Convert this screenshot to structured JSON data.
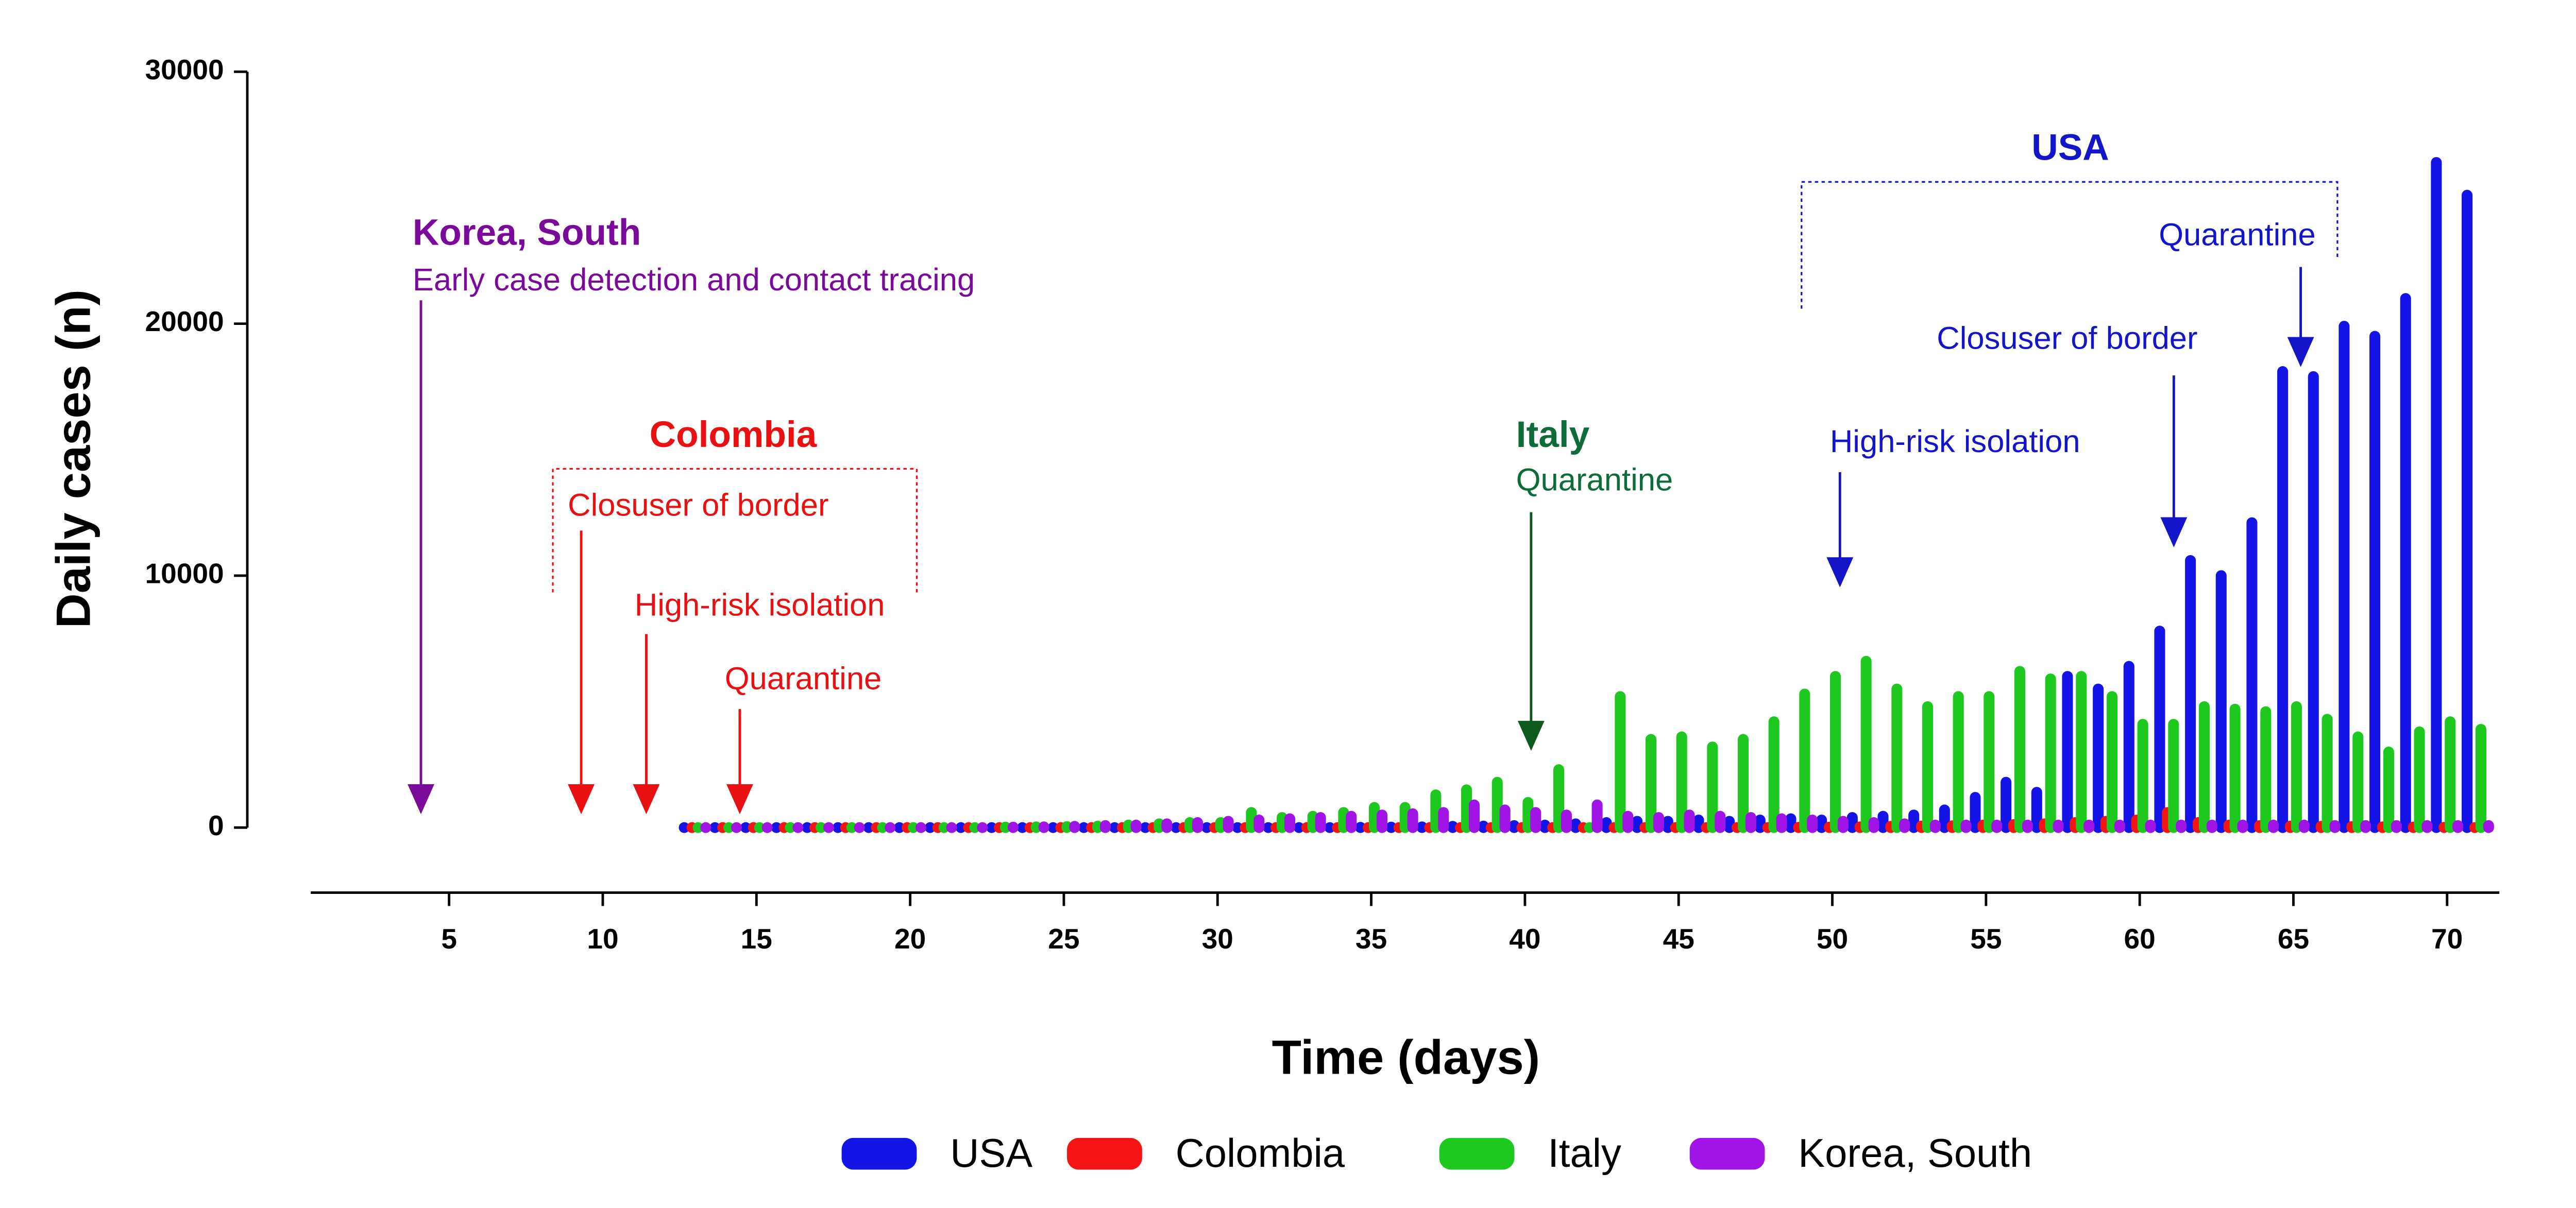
{
  "chart_data": {
    "type": "bar",
    "y_label": "Daily cases (n)",
    "x_label": "Time (days)",
    "x": [
      13,
      14,
      15,
      16,
      17,
      18,
      19,
      20,
      21,
      22,
      23,
      24,
      25,
      26,
      27,
      28,
      29,
      30,
      31,
      32,
      33,
      34,
      35,
      36,
      37,
      38,
      39,
      40,
      41,
      42,
      43,
      44,
      45,
      46,
      47,
      48,
      49,
      50,
      51,
      52,
      53,
      54,
      55,
      56,
      57,
      58,
      59,
      60,
      61,
      62,
      63,
      64,
      65,
      66,
      67,
      68,
      69,
      70,
      71
    ],
    "xlim": [
      0.5,
      71.7
    ],
    "xticks": [
      5,
      10,
      15,
      20,
      25,
      30,
      35,
      40,
      45,
      50,
      55,
      60,
      65,
      70
    ],
    "ylim": [
      0,
      30000
    ],
    "yticks": [
      0,
      10000,
      20000,
      30000
    ],
    "series": [
      {
        "name": "USA",
        "color": "#1414e6",
        "values": [
          0,
          0,
          0,
          0,
          0,
          0,
          0,
          0,
          0,
          0,
          0,
          0,
          0,
          0,
          0,
          0,
          0,
          0,
          0,
          0,
          0,
          0,
          10,
          20,
          30,
          50,
          60,
          80,
          100,
          150,
          200,
          250,
          250,
          300,
          250,
          300,
          350,
          300,
          400,
          450,
          500,
          700,
          1200,
          1800,
          1400,
          6000,
          5500,
          6400,
          7800,
          10600,
          10000,
          12100,
          18100,
          17900,
          19900,
          19500,
          21000,
          26400,
          25100
        ]
      },
      {
        "name": "Colombia",
        "color": "#f51414",
        "values": [
          0,
          0,
          0,
          0,
          0,
          0,
          0,
          0,
          0,
          0,
          0,
          0,
          0,
          0,
          0,
          0,
          0,
          0,
          0,
          0,
          0,
          0,
          0,
          0,
          0,
          0,
          0,
          0,
          0,
          0,
          0,
          0,
          0,
          0,
          0,
          0,
          10,
          20,
          30,
          50,
          60,
          70,
          100,
          120,
          150,
          200,
          250,
          300,
          600,
          200,
          100,
          80,
          60,
          50,
          40,
          30,
          20,
          10,
          0
        ]
      },
      {
        "name": "Italy",
        "color": "#1ec81e",
        "values": [
          0,
          0,
          0,
          0,
          0,
          0,
          0,
          0,
          0,
          0,
          20,
          30,
          40,
          60,
          100,
          150,
          200,
          200,
          600,
          400,
          450,
          600,
          800,
          800,
          1300,
          1500,
          1800,
          1000,
          2300,
          0,
          5200,
          3500,
          3600,
          3200,
          3500,
          4200,
          5300,
          6000,
          6600,
          5500,
          4800,
          5200,
          5200,
          6200,
          5900,
          6000,
          5200,
          4100,
          4100,
          4800,
          4700,
          4600,
          4800,
          4300,
          3600,
          3000,
          3800,
          4200,
          3900
        ]
      },
      {
        "name": "Korea, South",
        "color": "#a014e6",
        "values": [
          0,
          0,
          0,
          0,
          0,
          0,
          0,
          0,
          0,
          0,
          20,
          30,
          50,
          80,
          100,
          150,
          200,
          250,
          300,
          350,
          400,
          450,
          500,
          550,
          600,
          900,
          700,
          600,
          500,
          900,
          450,
          400,
          500,
          450,
          400,
          350,
          300,
          250,
          200,
          150,
          100,
          100,
          100,
          100,
          100,
          100,
          100,
          100,
          100,
          100,
          100,
          100,
          100,
          80,
          80,
          80,
          80,
          80,
          80
        ]
      }
    ],
    "annotations": [
      {
        "text": "Korea, South"
      },
      {
        "text": "Early case detection and contact tracing"
      },
      {
        "text": "Colombia"
      },
      {
        "text": "Closuser of border"
      },
      {
        "text": "High-risk isolation"
      },
      {
        "text": "Quarantine"
      },
      {
        "text": "Italy"
      },
      {
        "text": "Quarantine"
      },
      {
        "text": "USA"
      },
      {
        "text": "Quarantine"
      },
      {
        "text": "Closuser of border"
      },
      {
        "text": "High-risk isolation"
      }
    ]
  }
}
